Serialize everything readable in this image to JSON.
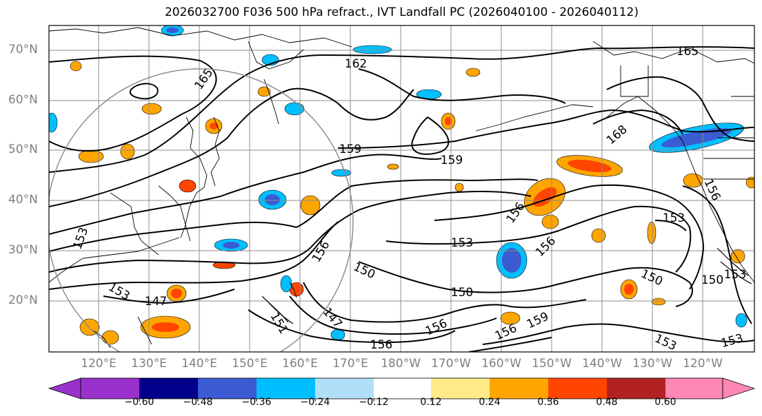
{
  "title": "2026032700 F036 500 hPa refract., IVT Landfall PC (2026040100 - 2026040112)",
  "lat_labels": [
    "70°N",
    "60°N",
    "50°N",
    "40°N",
    "30°N",
    "20°N"
  ],
  "lon_labels": [
    "120°E",
    "130°E",
    "140°E",
    "150°E",
    "160°E",
    "170°E",
    "180°W",
    "170°W",
    "160°W",
    "150°W",
    "140°W",
    "130°W",
    "120°W"
  ],
  "colorbar": {
    "ticks": [
      "−0.60",
      "−0.48",
      "−0.36",
      "−0.24",
      "−0.12",
      "0.12",
      "0.24",
      "0.36",
      "0.48",
      "0.60"
    ],
    "colors": [
      "#9932cc",
      "#00008b",
      "#3a5bd1",
      "#00bfff",
      "#b0e0f8",
      "#ffffff",
      "#ffeb8a",
      "#ffa500",
      "#ff4500",
      "#b22222",
      "#ff87b4"
    ]
  },
  "contour_labels": [
    "165",
    "162",
    "165",
    "159",
    "159",
    "168",
    "156",
    "156",
    "153",
    "153",
    "156",
    "153",
    "150",
    "150",
    "150",
    "147",
    "153",
    "151",
    "147",
    "156",
    "156",
    "159",
    "156",
    "153",
    "153",
    "156",
    "150",
    "153"
  ]
}
